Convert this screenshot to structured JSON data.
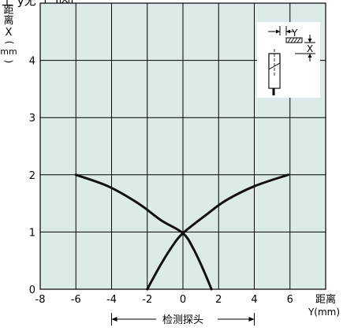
{
  "page": {
    "title_partial": "上 y无 上 l内l."
  },
  "chart_data": {
    "type": "line",
    "x_tick_labels": [
      "-8",
      "-6",
      "-4",
      "-2",
      "0",
      "2",
      "4",
      "6"
    ],
    "y_tick_labels": [
      "0",
      "1",
      "2",
      "3",
      "4"
    ],
    "xlim": [
      -8,
      8
    ],
    "ylim": [
      0,
      5
    ],
    "grid": true,
    "plot_background": "#dcebea",
    "line_color": "#111111",
    "ylabel_lines": [
      "距",
      "离",
      "X",
      "(",
      "mm",
      ")"
    ],
    "xlabel_lines": [
      "距离",
      "Y(mm)"
    ],
    "probe_label": "检测探头",
    "probe_range": [
      -4,
      4
    ],
    "inset_labels": {
      "y": "Y",
      "x": "X"
    },
    "series": [
      {
        "values": [
          {
            "x": -6.0,
            "y": 2.0
          },
          {
            "x": -4.2,
            "y": 1.8
          },
          {
            "x": -2.5,
            "y": 1.5
          },
          {
            "x": -1.2,
            "y": 1.2
          },
          {
            "x": 0.0,
            "y": 0.98
          },
          {
            "x": 0.6,
            "y": 0.7
          },
          {
            "x": 1.2,
            "y": 0.3
          },
          {
            "x": 1.6,
            "y": 0.0
          }
        ]
      },
      {
        "values": [
          {
            "x": -2.0,
            "y": 0.0
          },
          {
            "x": -1.3,
            "y": 0.4
          },
          {
            "x": -0.6,
            "y": 0.75
          },
          {
            "x": 0.0,
            "y": 0.98
          },
          {
            "x": 1.3,
            "y": 1.3
          },
          {
            "x": 2.4,
            "y": 1.55
          },
          {
            "x": 4.0,
            "y": 1.8
          },
          {
            "x": 5.9,
            "y": 2.0
          }
        ]
      }
    ]
  }
}
